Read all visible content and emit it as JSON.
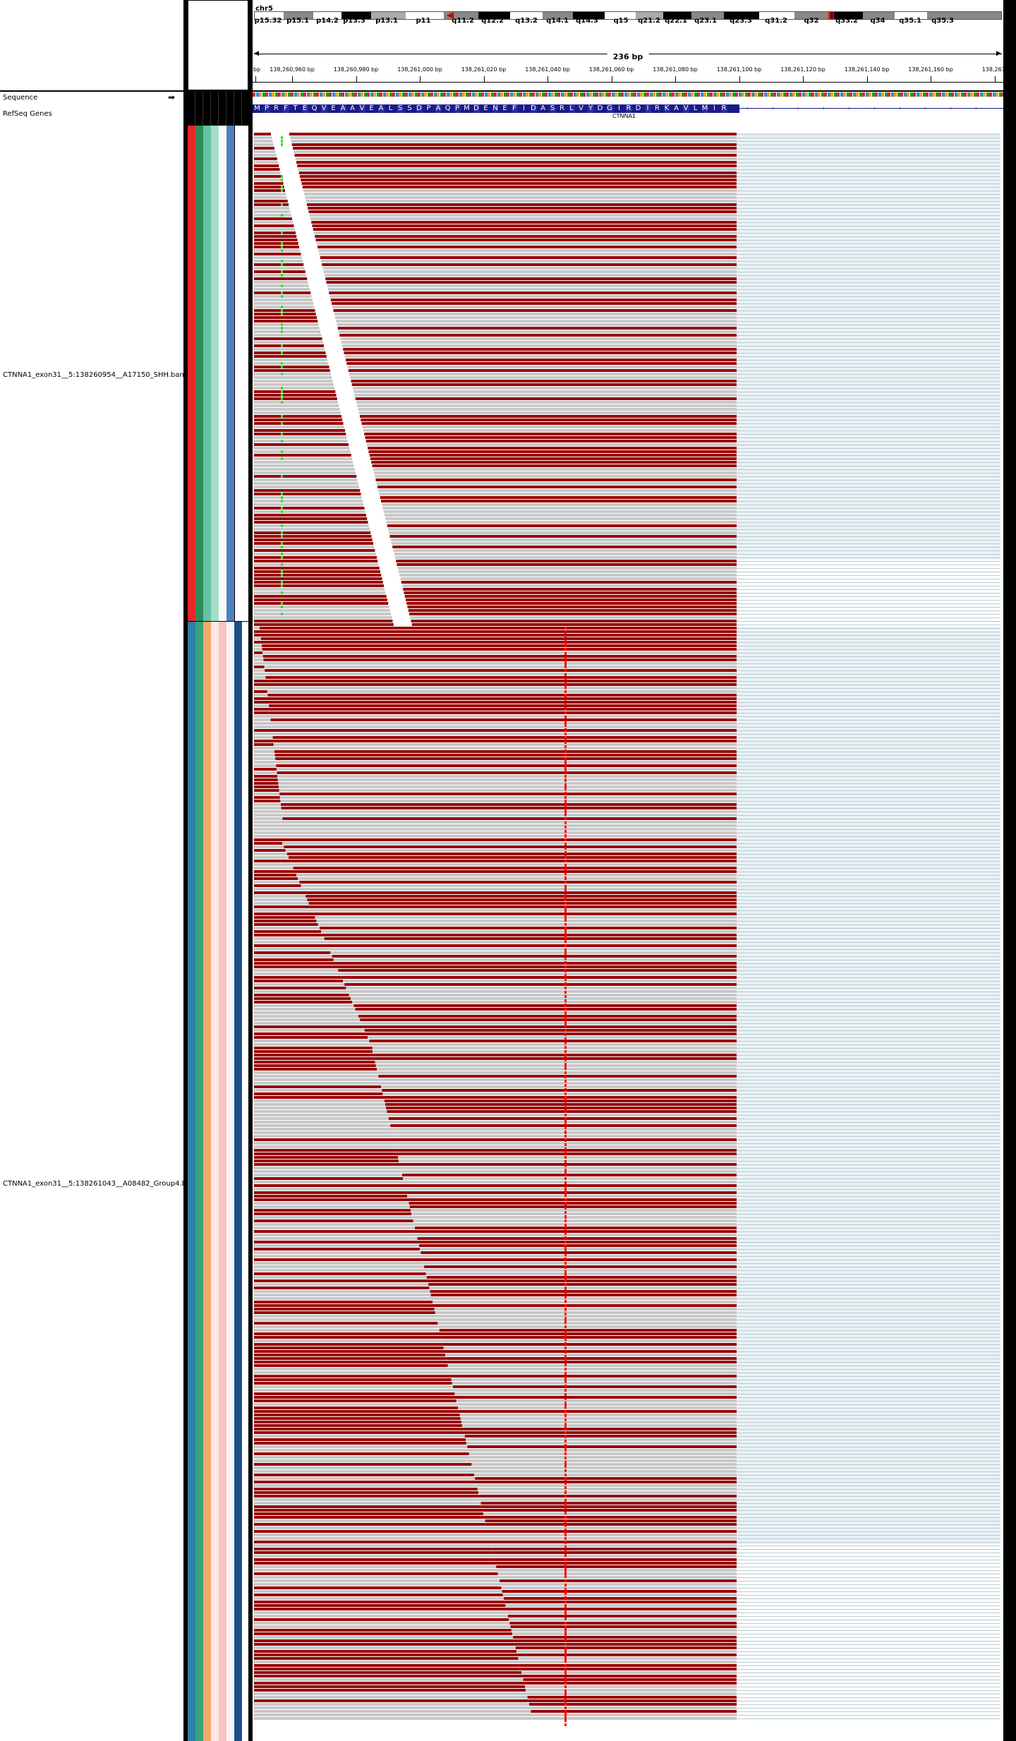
{
  "header": {
    "chromosome": "chr5",
    "span_label": "236 bp",
    "cytobands": [
      "p15.32",
      "p15.1",
      "p14.2",
      "p13.3",
      "p13.1",
      "p11",
      "q11.2",
      "q12.2",
      "q13.2",
      "q14.1",
      "q14.3",
      "q15",
      "q21.2",
      "q22.1",
      "q23.1",
      "q23.3",
      "q31.2",
      "q32",
      "q33.2",
      "q34",
      "q35.1",
      "q35.3"
    ],
    "ruler_ticks": [
      "bp",
      "138,260,960 bp",
      "138,260,980 bp",
      "138,261,000 bp",
      "138,261,020 bp",
      "138,261,040 bp",
      "138,261,060 bp",
      "138,261,080 bp",
      "138,261,100 bp",
      "138,261,120 bp",
      "138,261,140 bp",
      "138,261,160 bp",
      "138,261,"
    ]
  },
  "tracks": {
    "sequence_label": "Sequence",
    "refseq_label": "RefSeq Genes",
    "gene_name": "CTNNA1",
    "amino_acids": [
      "M",
      "P",
      "R",
      "F",
      "T",
      "E",
      "Q",
      "V",
      "E",
      "A",
      "A",
      "V",
      "E",
      "A",
      "L",
      "S",
      "S",
      "D",
      "P",
      "A",
      "Q",
      "P",
      "M",
      "D",
      "E",
      "N",
      "E",
      "F",
      "I",
      "D",
      "A",
      "S",
      "R",
      "L",
      "V",
      "Y",
      "D",
      "G",
      "I",
      "R",
      "D",
      "I",
      "R",
      "K",
      "A",
      "V",
      "L",
      "M",
      "I",
      "R"
    ],
    "bam1_label": "CTNNA1_exon31__5:138260954__A17150_SHH.bam",
    "bam2_label": "CTNNA1_exon31__5:138261043__A08482_Group4.b"
  },
  "colors": {
    "read_forward": "#990000",
    "read_reverse": "#c8c8c8",
    "soft_clip": "#dde9ee",
    "mismatch_variant": "#ff0000",
    "strand_arrow": "#000000",
    "amino_acid_bg": "#1a1a8a",
    "attr_group1": [
      "#e8262b",
      "#2e8b57",
      "#66c2a5",
      "#a6dcc8",
      "#4f7fbf",
      "#1f3a78"
    ],
    "attr_group2": [
      "#2b7fa8",
      "#3aa37a",
      "#f4a86b",
      "#fbc4c4",
      "#a8d8ea",
      "#1f4e8c"
    ]
  }
}
